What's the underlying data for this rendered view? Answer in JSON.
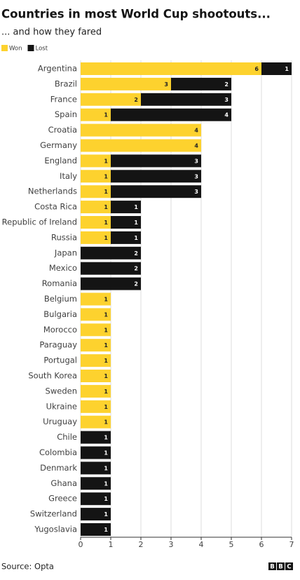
{
  "chart_data": {
    "type": "stacked_bar_horizontal",
    "title": "Countries in most World Cup shootouts...",
    "subtitle": "... and how they fared",
    "source": "Source: Opta",
    "logo": [
      "B",
      "B",
      "C"
    ],
    "categories": [
      "Argentina",
      "Brazil",
      "France",
      "Spain",
      "Croatia",
      "Germany",
      "England",
      "Italy",
      "Netherlands",
      "Costa Rica",
      "Republic of Ireland",
      "Russia",
      "Japan",
      "Mexico",
      "Romania",
      "Belgium",
      "Bulgaria",
      "Morocco",
      "Paraguay",
      "Portugal",
      "South Korea",
      "Sweden",
      "Ukraine",
      "Uruguay",
      "Chile",
      "Colombia",
      "Denmark",
      "Ghana",
      "Greece",
      "Switzerland",
      "Yugoslavia"
    ],
    "series": [
      {
        "name": "Won",
        "color": "#fdd22e",
        "label_color": "#222222",
        "values": [
          6,
          3,
          2,
          1,
          4,
          4,
          1,
          1,
          1,
          1,
          1,
          1,
          null,
          null,
          null,
          1,
          1,
          1,
          1,
          1,
          1,
          1,
          1,
          1,
          null,
          null,
          null,
          null,
          null,
          null,
          null
        ]
      },
      {
        "name": "Lost",
        "color": "#141414",
        "label_color": "#ffffff",
        "values": [
          1,
          2,
          3,
          4,
          null,
          null,
          3,
          3,
          3,
          1,
          1,
          1,
          2,
          2,
          2,
          null,
          null,
          null,
          null,
          null,
          null,
          null,
          null,
          null,
          1,
          1,
          1,
          1,
          1,
          1,
          1
        ]
      }
    ],
    "xlim": [
      0,
      7
    ],
    "xticks": [
      0,
      1,
      2,
      3,
      4,
      5,
      6,
      7
    ],
    "grid": true,
    "legend": "top-left"
  }
}
